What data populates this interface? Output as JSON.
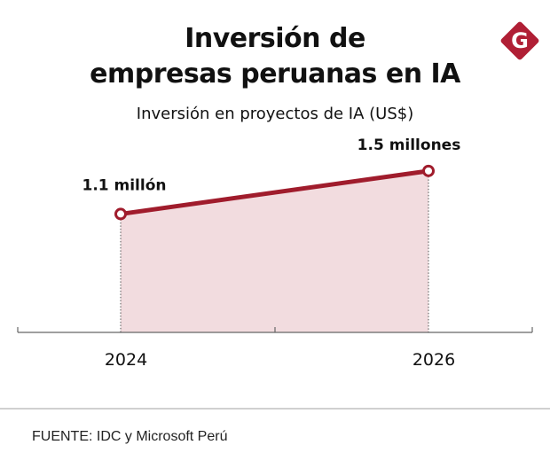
{
  "header": {
    "title_line1": "Inversión de",
    "title_line2": "empresas peruanas en IA",
    "subtitle": "Inversión en proyectos de IA (US$)",
    "logo_letter": "G"
  },
  "colors": {
    "accent": "#a01c2c",
    "fill": "#f2dcdf",
    "axis": "#666666"
  },
  "chart_data": {
    "type": "area",
    "title": "Inversión de empresas peruanas en IA",
    "subtitle": "Inversión en proyectos de IA (US$)",
    "xlabel": "",
    "ylabel": "",
    "x": [
      "2024",
      "2026"
    ],
    "series": [
      {
        "name": "Inversión en proyectos de IA (US$, millones)",
        "values": [
          1.1,
          1.5
        ]
      }
    ],
    "data_labels": [
      "1.1 millón",
      "1.5 millones"
    ],
    "x_ticks": [
      "2024",
      "2025",
      "2026"
    ],
    "x_tick_labels": [
      "2024",
      "",
      "2026"
    ],
    "ylim": [
      0,
      2.1
    ],
    "grid": false,
    "legend": "none"
  },
  "footer": {
    "source": "FUENTE: IDC y Microsoft Perú"
  }
}
